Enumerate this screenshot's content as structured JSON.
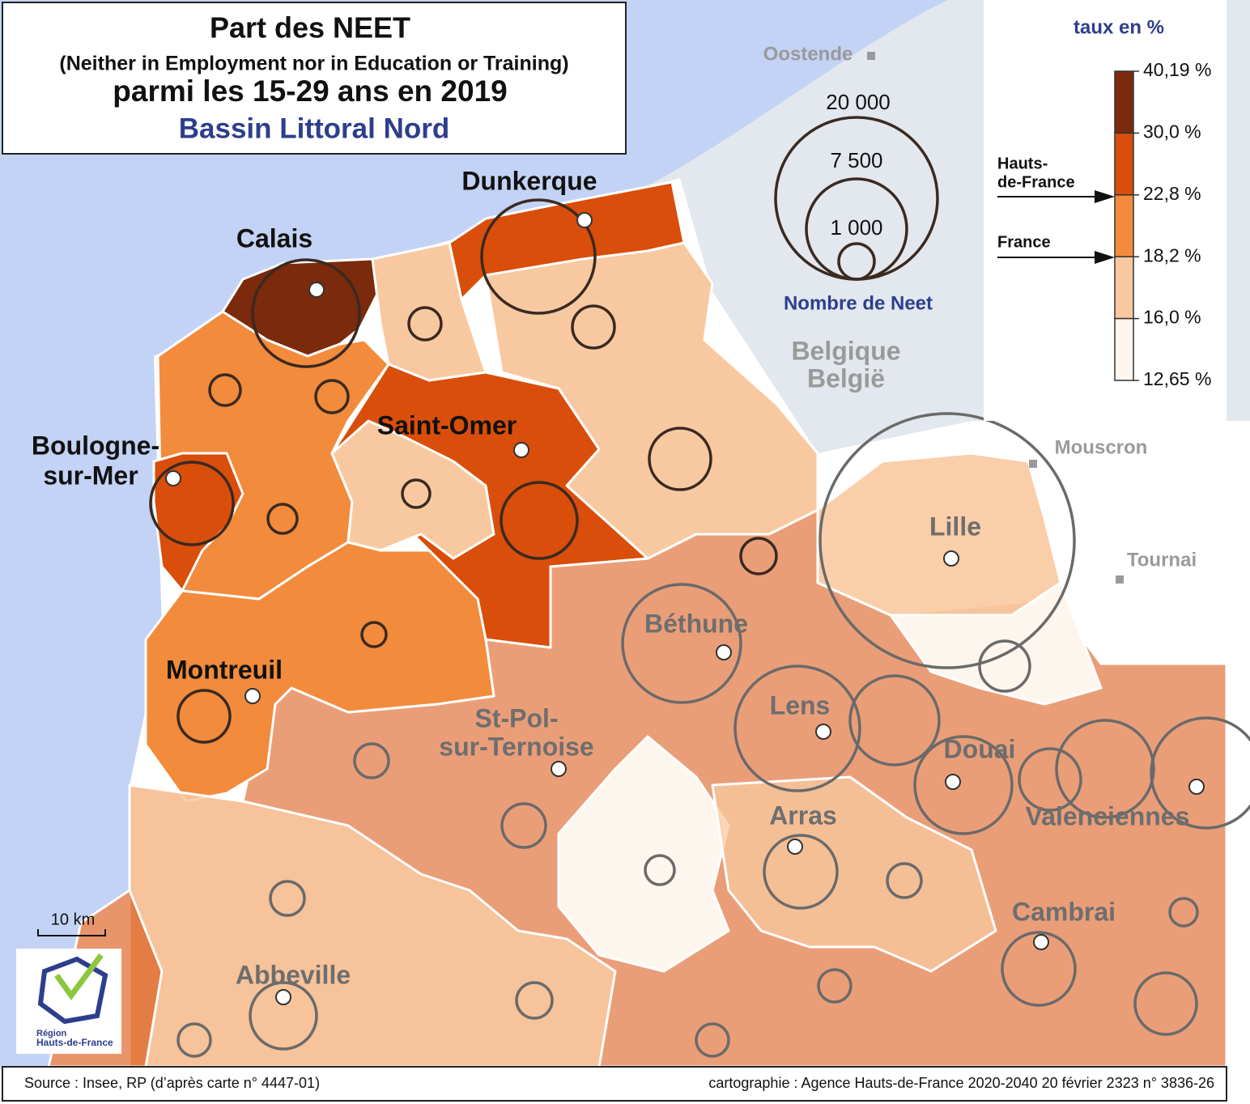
{
  "title": {
    "line1": "Part des NEET",
    "line2": "(Neither in Employment nor in Education or Training)",
    "line3": "parmi les 15-29 ans en 2019",
    "subtitle": "Bassin Littoral Nord"
  },
  "legend": {
    "title": "taux en %",
    "breaks": [
      "40,19 %",
      "30,0 %",
      "22,8 %",
      "18,2 %",
      "16,0 %",
      "12,65 %"
    ],
    "colors": [
      "#7b2a0c",
      "#d94e0a",
      "#f28b3c",
      "#f8c9a0",
      "#fdf6ee"
    ],
    "markers": [
      {
        "lines": [
          "Hauts-",
          "de-France"
        ]
      },
      {
        "lines": [
          "France"
        ]
      }
    ]
  },
  "size_legend": {
    "title": "Nombre de Neet",
    "sizes": [
      "20 000",
      "7 500",
      "1 000"
    ]
  },
  "places": [
    {
      "lines": [
        "Calais"
      ]
    },
    {
      "lines": [
        "Dunkerque"
      ]
    },
    {
      "lines": [
        "Boulogne-",
        "sur-Mer"
      ]
    },
    {
      "lines": [
        "Saint-Omer"
      ]
    },
    {
      "lines": [
        "Montreuil"
      ]
    },
    {
      "lines": [
        "Lille"
      ]
    },
    {
      "lines": [
        "Béthune"
      ]
    },
    {
      "lines": [
        "Lens"
      ]
    },
    {
      "lines": [
        "St-Pol-",
        "sur-Ternoise"
      ]
    },
    {
      "lines": [
        "Douai"
      ]
    },
    {
      "lines": [
        "Arras"
      ]
    },
    {
      "lines": [
        "Valenciennes"
      ]
    },
    {
      "lines": [
        "Cambrai"
      ]
    },
    {
      "lines": [
        "Abbeville"
      ]
    }
  ],
  "foreign": [
    "Oostende",
    "Mouscron",
    "Tournai"
  ],
  "country": [
    "Belgique",
    "België"
  ],
  "scale": "10 km",
  "logo": [
    "Région",
    "Hauts-de-France"
  ],
  "footer": {
    "source": "Source : Insee, RP (d’après carte n° 4447-01)",
    "credits": "cartographie : Agence Hauts-de-France 2020-2040    20 février 2323 n° 3836-26"
  }
}
